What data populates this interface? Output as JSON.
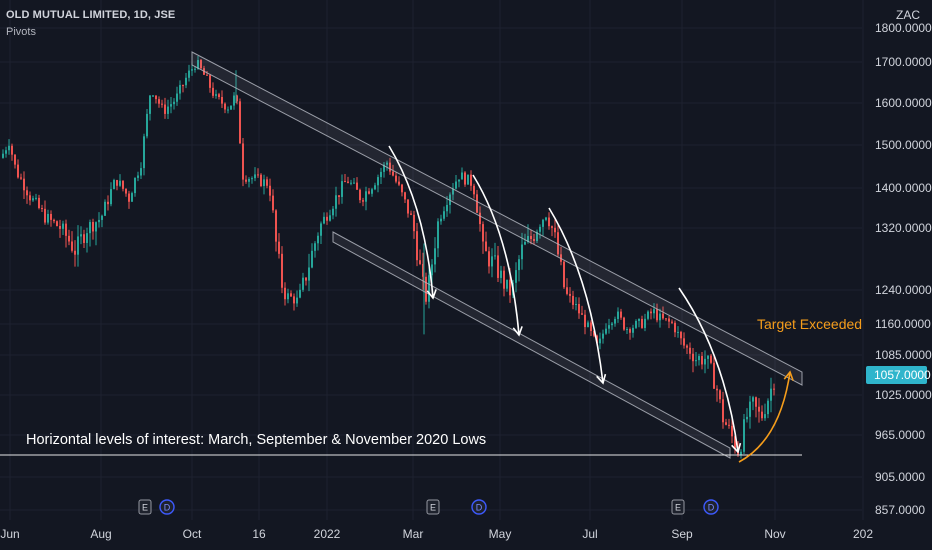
{
  "header": {
    "symbol_line": "OLD MUTUAL LIMITED, 1D, JSE",
    "indicator": "Pivots",
    "currency": "ZAC"
  },
  "chart_data": {
    "type": "candlestick",
    "y_ticks": [
      "857.0000",
      "905.0000",
      "965.0000",
      "1025.0000",
      "1085.0000",
      "1160.0000",
      "1240.0000",
      "1320.0000",
      "1400.0000",
      "1500.0000",
      "1600.0000",
      "1700.0000",
      "1800.0000"
    ],
    "y_tick_values": [
      857,
      905,
      965,
      1025,
      1085,
      1160,
      1240,
      1320,
      1400,
      1500,
      1600,
      1700,
      1800
    ],
    "x_ticks": [
      "Jun",
      "Aug",
      "Oct",
      "16",
      "2022",
      "Mar",
      "May",
      "Jul",
      "Sep",
      "Nov",
      "202"
    ],
    "last_price": "1057.0000",
    "last_price_value": 1057,
    "annotations": {
      "horizontal_note": "Horizontal levels of interest: March, September & November 2020 Lows",
      "target_note": "Target Exceeded"
    },
    "horizontal_level": 940,
    "event_markers": [
      {
        "label": "E",
        "near_tick": "Aug"
      },
      {
        "label": "D",
        "near_tick": "Aug"
      },
      {
        "label": "E",
        "near_tick": "Mar"
      },
      {
        "label": "D",
        "near_tick": "Mar"
      },
      {
        "label": "E",
        "near_tick": "Sep"
      },
      {
        "label": "D",
        "near_tick": "Sep"
      }
    ],
    "colors": {
      "up": "#26a69a",
      "down": "#ef5350",
      "background": "#131722",
      "channel": "#b2b5be",
      "arrow": "#ffffff",
      "target_arrow": "#f59d1b",
      "price_badge": "#2fb5cc"
    }
  }
}
